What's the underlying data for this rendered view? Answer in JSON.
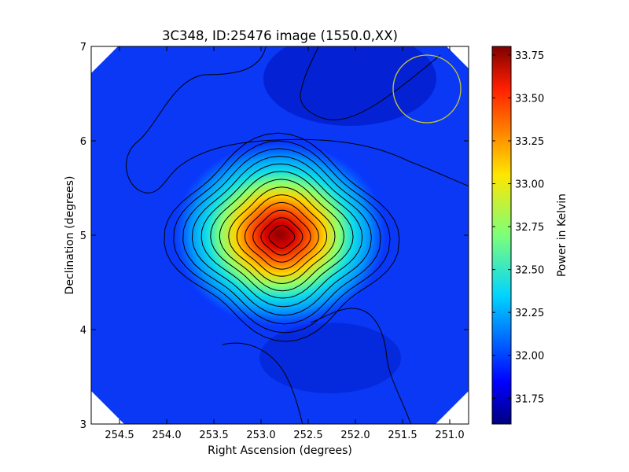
{
  "chart_data": {
    "type": "heatmap",
    "title": "3C348, ID:25476 image (1550.0,XX)",
    "xlabel": "Right Ascension (degrees)",
    "ylabel": "Declination (degrees)",
    "colorbar_label": "Power in Kelvin",
    "colormap": "jet",
    "xlim": [
      254.8,
      250.8
    ],
    "ylim": [
      3.0,
      7.0
    ],
    "x_ticks": [
      254.5,
      254.0,
      253.5,
      253.0,
      252.5,
      252.0,
      251.5,
      251.0
    ],
    "x_tick_labels": [
      "254.5",
      "254.0",
      "253.5",
      "253.0",
      "252.5",
      "252.0",
      "251.5",
      "251.0"
    ],
    "y_ticks": [
      3,
      4,
      5,
      6,
      7
    ],
    "y_tick_labels": [
      "3",
      "4",
      "5",
      "6",
      "7"
    ],
    "colorbar_range": [
      31.6,
      33.8
    ],
    "colorbar_ticks": [
      31.75,
      32.0,
      32.25,
      32.5,
      32.75,
      33.0,
      33.25,
      33.5,
      33.75
    ],
    "colorbar_tick_labels": [
      "31.75",
      "32.00",
      "32.25",
      "32.50",
      "32.75",
      "33.00",
      "33.25",
      "33.50",
      "33.75"
    ],
    "peak": {
      "ra": 252.78,
      "dec": 4.98,
      "value": 33.78
    },
    "background_value": 31.9,
    "beam_marker": {
      "ra": 251.2,
      "dec": 6.55,
      "color": "#c8c832"
    },
    "contours": true,
    "grid": false
  }
}
